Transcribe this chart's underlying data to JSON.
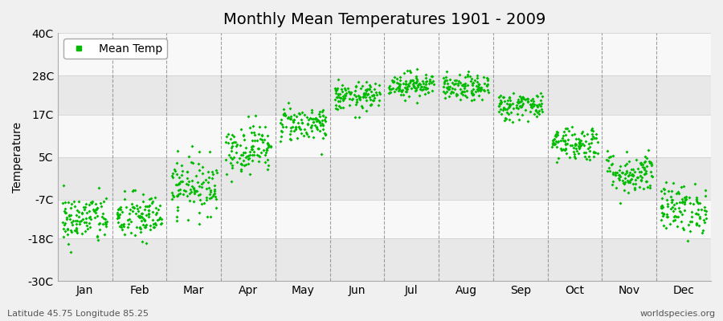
{
  "title": "Monthly Mean Temperatures 1901 - 2009",
  "ylabel": "Temperature",
  "xlabel_labels": [
    "Jan",
    "Feb",
    "Mar",
    "Apr",
    "May",
    "Jun",
    "Jul",
    "Aug",
    "Sep",
    "Oct",
    "Nov",
    "Dec"
  ],
  "ytick_labels": [
    "-30C",
    "-18C",
    "-7C",
    "5C",
    "17C",
    "28C",
    "40C"
  ],
  "ytick_values": [
    -30,
    -18,
    -7,
    5,
    17,
    28,
    40
  ],
  "ylim": [
    -30,
    40
  ],
  "dot_color": "#00bb00",
  "dot_size": 4,
  "title_fontsize": 14,
  "axis_fontsize": 10,
  "tick_fontsize": 10,
  "subtitle_left": "Latitude 45.75 Longitude 85.25",
  "subtitle_right": "worldspecies.org",
  "monthly_means": [
    -12.5,
    -12.0,
    -3.0,
    7.5,
    14.5,
    22.0,
    25.5,
    24.5,
    19.5,
    9.0,
    0.5,
    -9.5
  ],
  "monthly_stds": [
    3.5,
    3.5,
    4.0,
    3.5,
    2.5,
    2.0,
    1.8,
    1.8,
    2.0,
    2.5,
    3.0,
    3.5
  ],
  "n_years": 109,
  "dashed_line_color": "#888888",
  "band_colors": [
    "#e8e8e8",
    "#f8f8f8"
  ],
  "bg_color": "#f0f0f0"
}
